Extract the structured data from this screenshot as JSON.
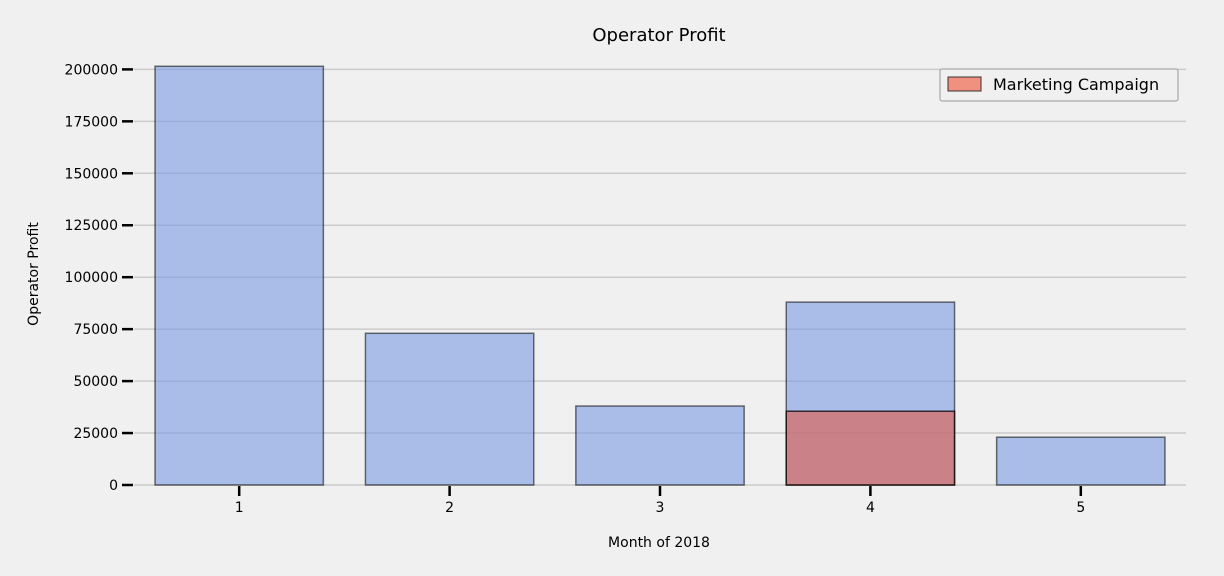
{
  "chart_data": {
    "type": "bar",
    "title": "Operator Profit",
    "xlabel": "Month of 2018",
    "ylabel": "Operator Profit",
    "categories": [
      "1",
      "2",
      "3",
      "4",
      "5"
    ],
    "series": [
      {
        "name": "",
        "values": [
          201500,
          73000,
          38000,
          88000,
          23000
        ],
        "color": "#7b9be3"
      },
      {
        "name": "Marketing Campaign",
        "values": [
          null,
          null,
          null,
          35500,
          null
        ],
        "color": "#e05a47"
      }
    ],
    "ylim": [
      0,
      205000
    ],
    "yticks": [
      0,
      25000,
      50000,
      75000,
      100000,
      125000,
      150000,
      175000,
      200000
    ],
    "ytick_labels": [
      "0",
      "25000",
      "50000",
      "75000",
      "100000",
      "125000",
      "150000",
      "175000",
      "200000"
    ],
    "grid": true,
    "legend_position": "top-right"
  }
}
